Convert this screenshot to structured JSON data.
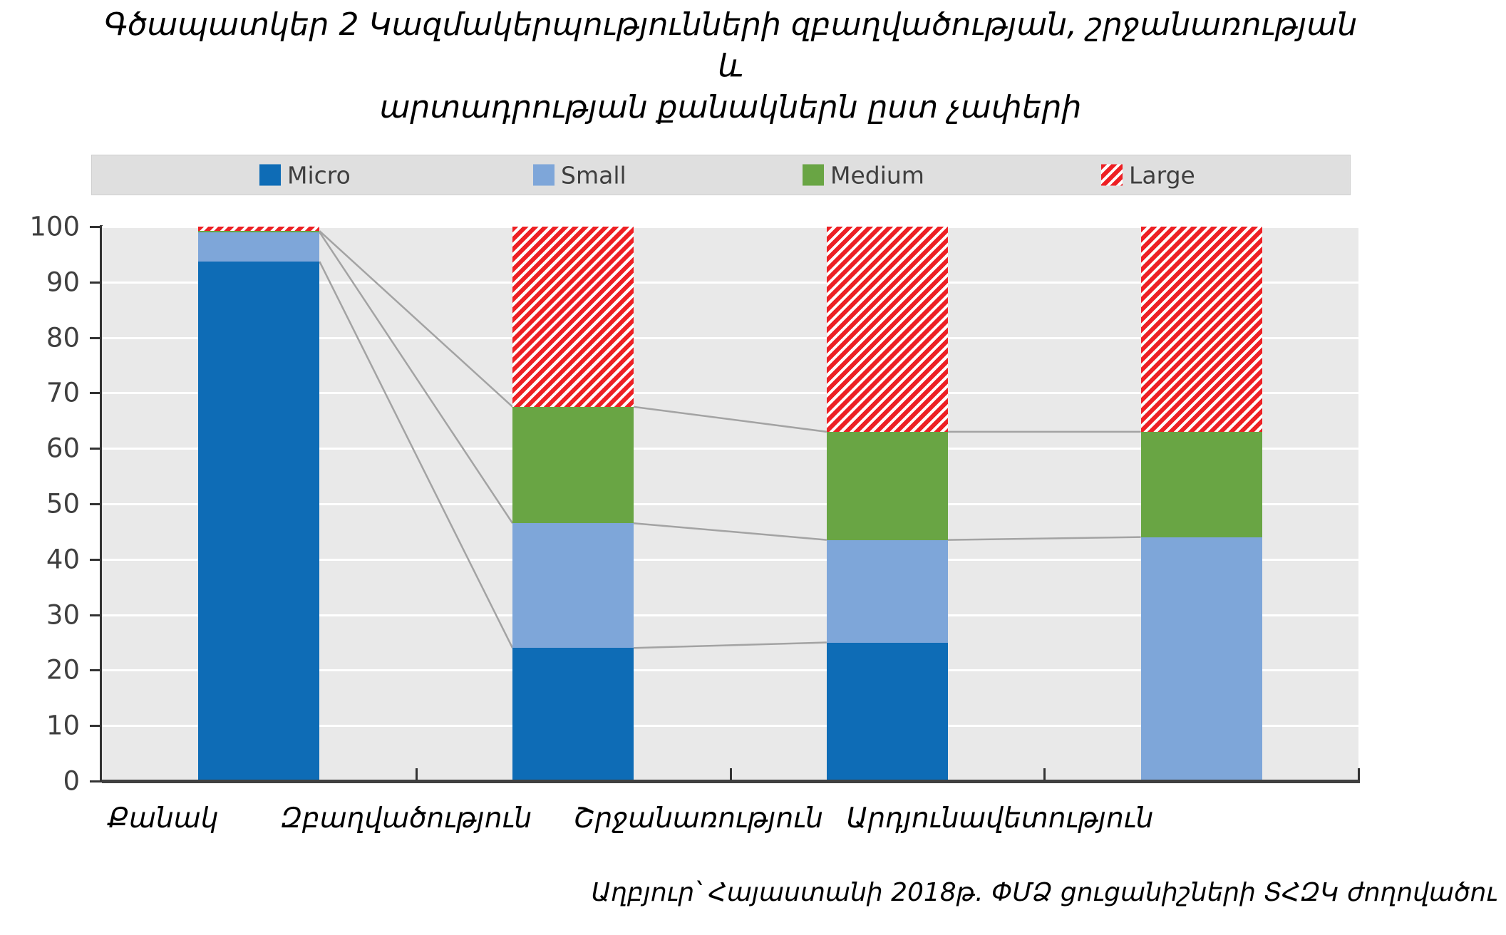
{
  "title": {
    "line1": "Գծապատկեր 2 Կազմակերպությունների զբաղվածության, շրջանառության և",
    "line2": "արտադրության քանակներն ըստ չափերի"
  },
  "legend": {
    "items": [
      {
        "label": "Micro",
        "color": "#0e6cb6",
        "pattern": "solid"
      },
      {
        "label": "Small",
        "color": "#7ea6d9",
        "pattern": "solid"
      },
      {
        "label": "Medium",
        "color": "#69a544",
        "pattern": "solid"
      },
      {
        "label": "Large",
        "color": "#ed2024",
        "pattern": "diagonal-stripes"
      }
    ]
  },
  "source": "Աղբյուր՝ Հայաստանի 2018թ. ՓՄՁ ցուցանիշների ՏՀԶԿ ժողովածու",
  "chart_data": {
    "type": "bar",
    "stacked": true,
    "categories": [
      "Քանակ",
      "Զբաղվածություն",
      "Շրջանառություն",
      "Արդյունավետություն"
    ],
    "series": [
      {
        "name": "Micro",
        "color": "#0e6cb6",
        "pattern": "solid",
        "values": [
          93.7,
          24.0,
          25.0,
          0.0
        ]
      },
      {
        "name": "Small",
        "color": "#7ea6d9",
        "pattern": "solid",
        "values": [
          5.3,
          22.5,
          18.5,
          44.0
        ]
      },
      {
        "name": "Medium",
        "color": "#69a544",
        "pattern": "solid",
        "values": [
          0.2,
          21.0,
          19.5,
          19.0
        ]
      },
      {
        "name": "Large",
        "color": "#ed2024",
        "pattern": "diagonal-stripes",
        "values": [
          0.8,
          32.5,
          37.0,
          37.0
        ]
      }
    ],
    "ylim": [
      0,
      100
    ],
    "ytick_step": 10,
    "grid": true,
    "legend_position": "top",
    "series_lines": true,
    "plot_background": "#e9e9e9",
    "gridline_color": "#ffffff",
    "series_line_color": "#a3a3a3"
  }
}
